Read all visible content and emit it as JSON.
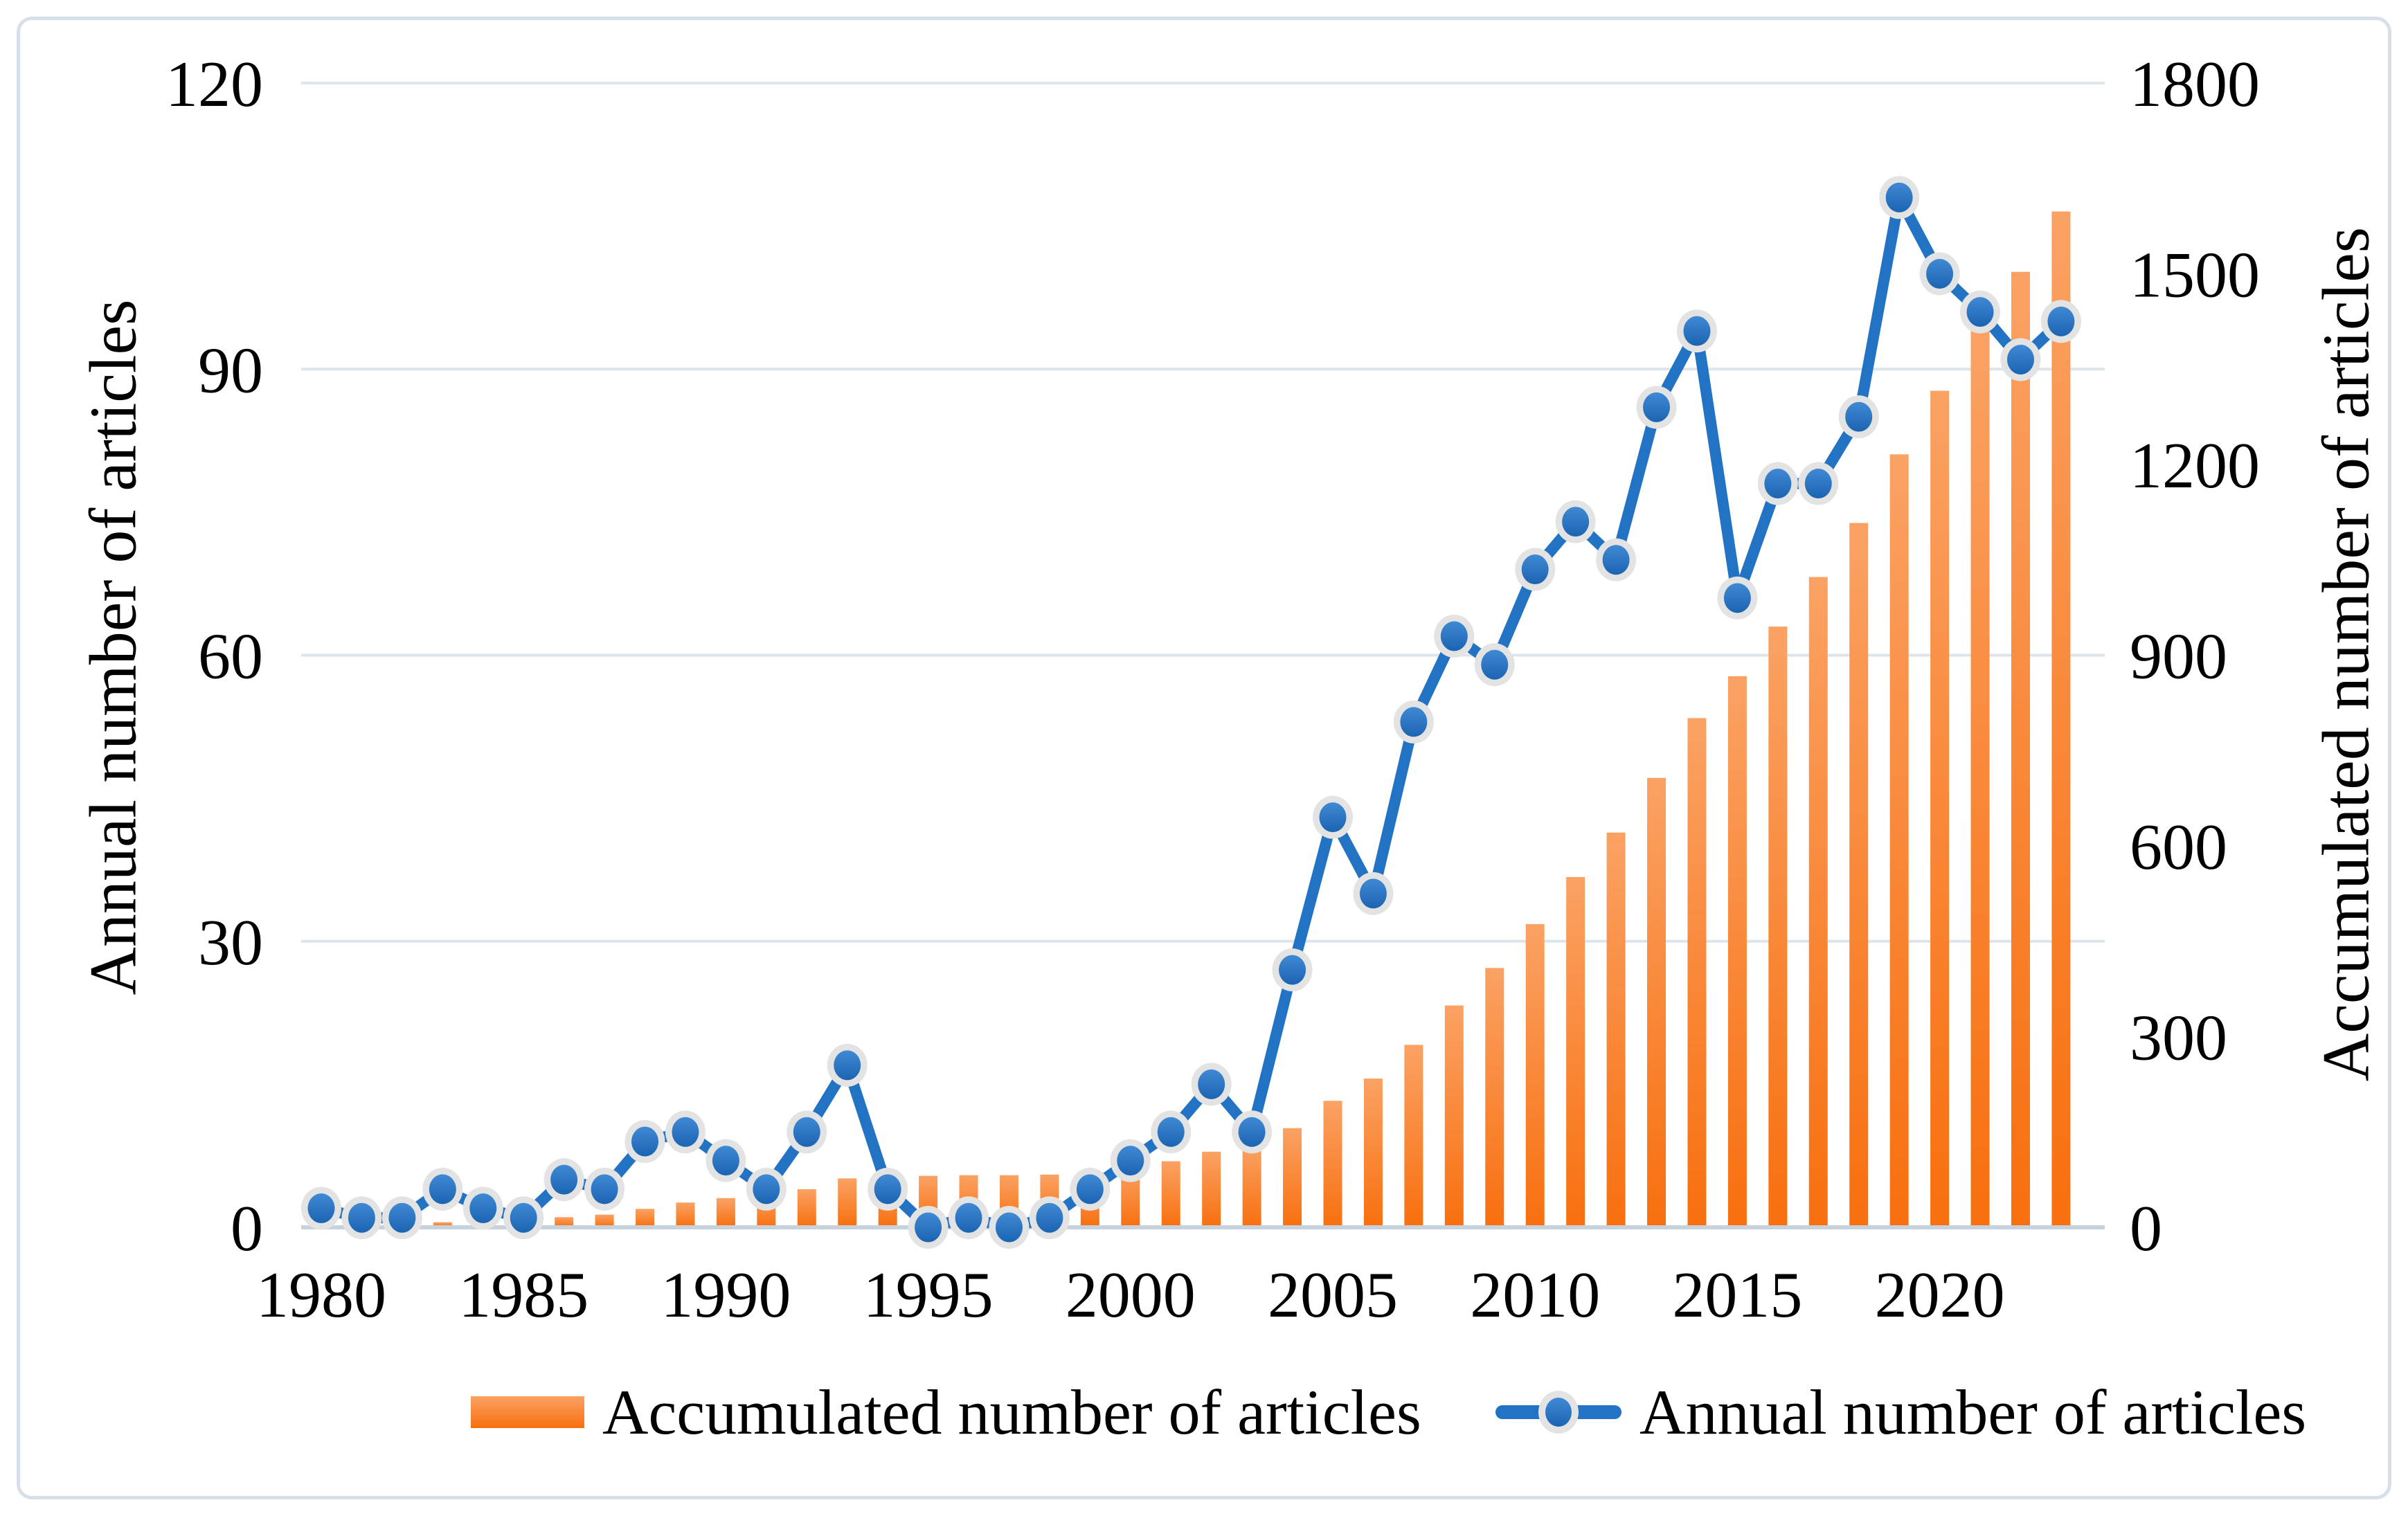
{
  "figure": {
    "background": "#FFFFFF",
    "border_color": "#D7DFE8",
    "text_color": "#000000"
  },
  "chart_data": {
    "type": "bar",
    "combo": "bar+line dual axis",
    "grid": "on",
    "legend_position": "bottom",
    "gridline_color": "#DCE4EC",
    "axis_line_color": "#C7D2DD",
    "categories": [
      1980,
      1981,
      1982,
      1983,
      1984,
      1985,
      1986,
      1987,
      1988,
      1989,
      1990,
      1991,
      1992,
      1993,
      1994,
      1995,
      1996,
      1997,
      1998,
      1999,
      2000,
      2001,
      2002,
      2003,
      2004,
      2005,
      2006,
      2007,
      2008,
      2009,
      2010,
      2011,
      2012,
      2013,
      2014,
      2015,
      2016,
      2017,
      2018,
      2019,
      2020,
      2021,
      2022,
      2023
    ],
    "series": [
      {
        "name": "Accumulated number of articles",
        "kind": "bar",
        "axis": "right",
        "color_top": "#FAA264",
        "color_bottom": "#F86F0E",
        "values": [
          2,
          3,
          4,
          8,
          10,
          11,
          16,
          20,
          29,
          39,
          46,
          50,
          60,
          77,
          81,
          81,
          82,
          82,
          83,
          87,
          94,
          104,
          119,
          129,
          156,
          199,
          234,
          287,
          349,
          408,
          477,
          551,
          621,
          707,
          801,
          867,
          945,
          1023,
          1108,
          1216,
          1316,
          1412,
          1503,
          1598
        ]
      },
      {
        "name": "Annual number of articles",
        "kind": "line",
        "axis": "left",
        "line_color": "#2373C4",
        "marker_fill_top": "#4089D4",
        "marker_fill_bottom": "#1A64B2",
        "marker_ring_color": "#E3E3E3",
        "values": [
          2,
          1,
          1,
          4,
          2,
          1,
          5,
          4,
          9,
          10,
          7,
          4,
          10,
          17,
          4,
          0,
          1,
          0,
          1,
          4,
          7,
          10,
          15,
          10,
          27,
          43,
          35,
          53,
          62,
          59,
          69,
          74,
          70,
          86,
          94,
          66,
          78,
          78,
          85,
          108,
          100,
          96,
          91,
          95
        ]
      }
    ],
    "left_axis": {
      "title": "Annual number of articles",
      "ticks": [
        0,
        30,
        60,
        90,
        120
      ],
      "range": [
        0,
        120
      ]
    },
    "right_axis": {
      "title": "Accumulated number of articles",
      "ticks": [
        0,
        300,
        600,
        900,
        1200,
        1500,
        1800
      ],
      "range": [
        0,
        1800
      ]
    },
    "x_axis": {
      "tick_labels": [
        "1980",
        "1985",
        "1990",
        "1995",
        "2000",
        "2005",
        "2010",
        "2015",
        "2020"
      ],
      "tick_years": [
        1980,
        1985,
        1990,
        1995,
        2000,
        2005,
        2010,
        2015,
        2020
      ]
    }
  }
}
